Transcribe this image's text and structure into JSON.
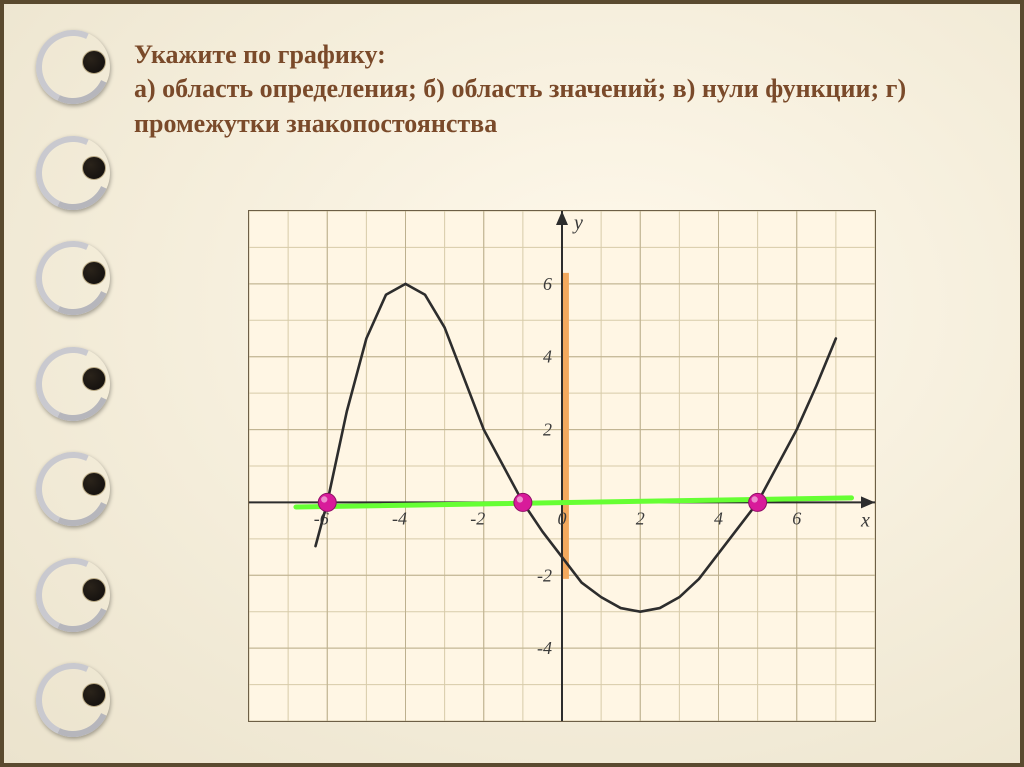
{
  "title": {
    "line1": "Укажите по графику:",
    "line2": "а) область определения; б) область значений; в) нули функции; г) промежутки знакопостоянства",
    "color": "#7a4a2a",
    "fontsize": 26,
    "weight": "bold"
  },
  "chart": {
    "type": "line",
    "background_color": "#fff6e4",
    "grid_color": "#bdb08e",
    "minor_grid_color": "#d7cba9",
    "axis_color": "#2d2d2d",
    "tick_fontsize": 18,
    "tick_color": "#3a3a3a",
    "axis_labels": {
      "x": "x",
      "y": "y"
    },
    "xlim": [
      -8,
      8
    ],
    "ylim": [
      -6,
      8
    ],
    "xticks": [
      -6,
      -4,
      -2,
      0,
      2,
      4,
      6
    ],
    "yticks": [
      -4,
      -2,
      2,
      4,
      6
    ],
    "curve": {
      "color": "#2d2d2d",
      "width": 2.6,
      "points": [
        [
          -6.3,
          -1.2
        ],
        [
          -6.0,
          0.0
        ],
        [
          -5.5,
          2.5
        ],
        [
          -5.0,
          4.5
        ],
        [
          -4.5,
          5.7
        ],
        [
          -4.0,
          6.0
        ],
        [
          -3.5,
          5.7
        ],
        [
          -3.0,
          4.8
        ],
        [
          -2.5,
          3.4
        ],
        [
          -2.0,
          2.0
        ],
        [
          -1.5,
          1.0
        ],
        [
          -1.0,
          0.0
        ],
        [
          -0.5,
          -0.8
        ],
        [
          0.0,
          -1.5
        ],
        [
          0.5,
          -2.2
        ],
        [
          1.0,
          -2.6
        ],
        [
          1.5,
          -2.9
        ],
        [
          2.0,
          -3.0
        ],
        [
          2.5,
          -2.9
        ],
        [
          3.0,
          -2.6
        ],
        [
          3.5,
          -2.1
        ],
        [
          4.0,
          -1.4
        ],
        [
          4.5,
          -0.7
        ],
        [
          5.0,
          0.0
        ],
        [
          5.5,
          1.0
        ],
        [
          6.0,
          2.0
        ],
        [
          6.5,
          3.2
        ],
        [
          7.0,
          4.5
        ]
      ]
    },
    "highlight_x_line": {
      "color": "#66ff33",
      "width": 5,
      "y": 0,
      "x_from": -6.8,
      "x_to": 7.4,
      "tilt_dy": 0.25
    },
    "highlight_y_segment": {
      "color": "#f3a95e",
      "width": 6,
      "x": 0.1,
      "y_from": -2.1,
      "y_to": 6.3
    },
    "zeros": {
      "color": "#d81b9a",
      "radius": 9,
      "points": [
        [
          -6,
          0
        ],
        [
          -1,
          0
        ],
        [
          5,
          0
        ]
      ]
    }
  },
  "binding": {
    "ring_count": 7,
    "wire_color": "#c9c9cf",
    "hole_color": "#171310"
  },
  "frame": {
    "border_color": "#5a4a2f",
    "border_width": 4
  }
}
